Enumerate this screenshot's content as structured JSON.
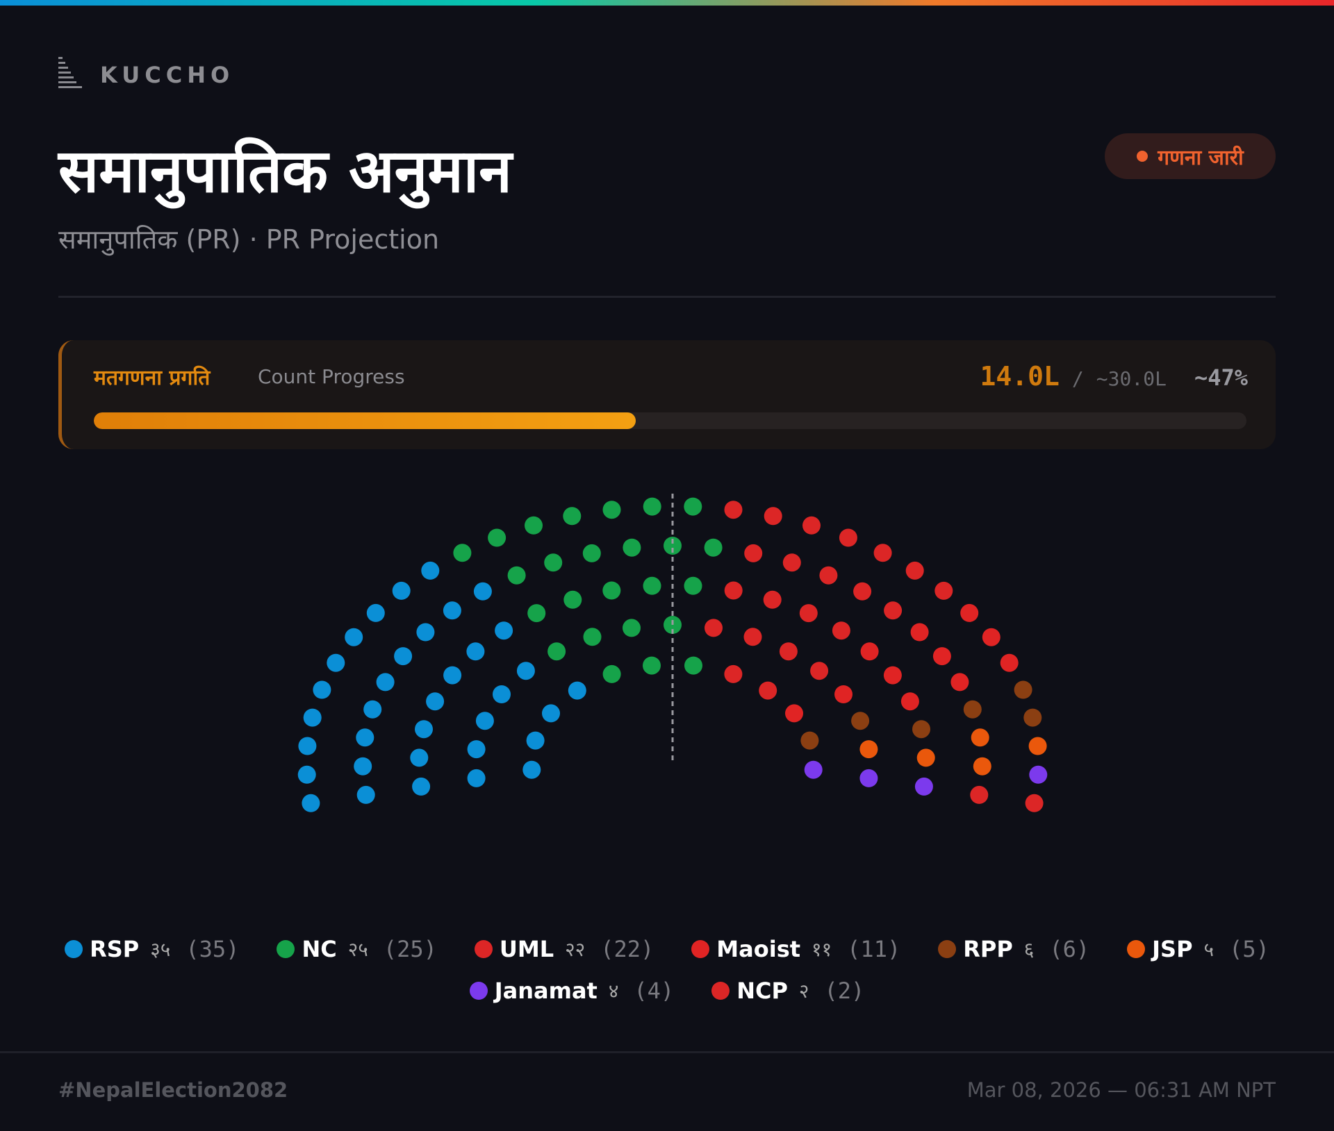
{
  "brand": {
    "name": "KUCCHO",
    "icon": "bars-logo-icon"
  },
  "header": {
    "title": "समानुपातिक अनुमान",
    "subtitle": "समानुपातिक (PR) · PR Projection",
    "status_badge": "गणना जारी",
    "status_color": "#f0622e"
  },
  "progress": {
    "label_np": "मतगणना प्रगति",
    "label_en": "Count Progress",
    "counted": "14.0L",
    "separator": "/",
    "total": "~30.0L",
    "percent_label": "~47%",
    "fraction": 0.47
  },
  "chart_data": {
    "type": "hemicycle",
    "total_seats": 110,
    "series": [
      {
        "name": "RSP",
        "np": "३५",
        "seats": 35,
        "color": "#0b8fd6"
      },
      {
        "name": "NC",
        "np": "२५",
        "seats": 25,
        "color": "#16a34a"
      },
      {
        "name": "UML",
        "np": "२२",
        "seats": 22,
        "color": "#dc2626"
      },
      {
        "name": "Maoist",
        "np": "११",
        "seats": 11,
        "color": "#e02424"
      },
      {
        "name": "RPP",
        "np": "६",
        "seats": 6,
        "color": "#8b3f12"
      },
      {
        "name": "JSP",
        "np": "५",
        "seats": 5,
        "color": "#ea580c"
      },
      {
        "name": "Janamat",
        "np": "४",
        "seats": 4,
        "color": "#7c3aed"
      },
      {
        "name": "NCP",
        "np": "२",
        "seats": 2,
        "color": "#dc2626"
      }
    ]
  },
  "footer": {
    "hashtag": "#NepalElection2082",
    "timestamp": "Mar 08, 2026 — 06:31 AM NPT"
  }
}
